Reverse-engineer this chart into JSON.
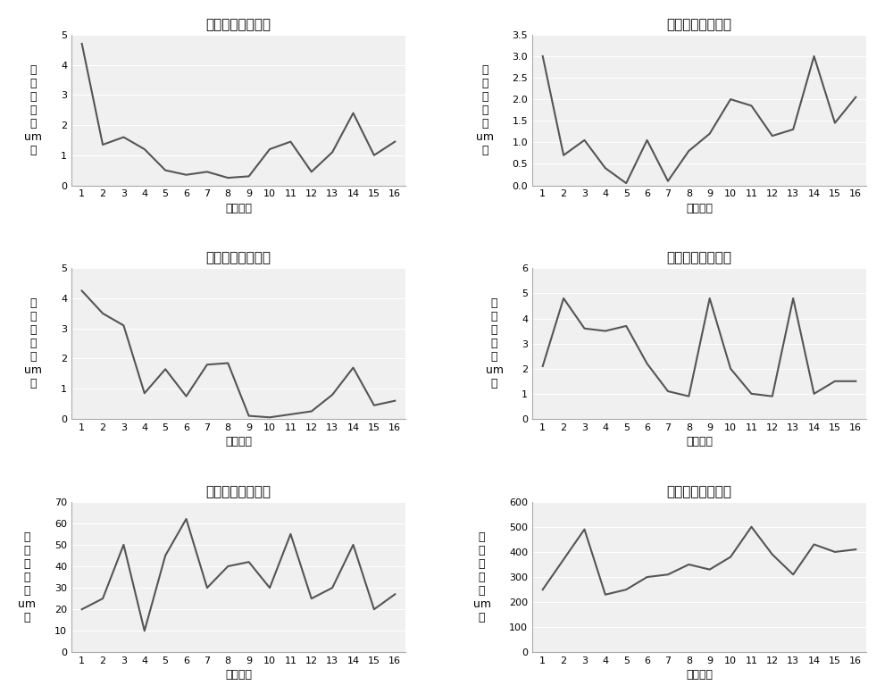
{
  "plots": [
    {
      "title": "一阶拟合绝对误差",
      "ylabel": "绝\n对\n误\n差\n（\num\n）",
      "xlabel": "元件编号",
      "ylim": [
        0,
        5
      ],
      "yticks": [
        0,
        1,
        2,
        3,
        4,
        5
      ],
      "data": [
        4.7,
        1.35,
        1.6,
        1.2,
        0.5,
        0.35,
        0.45,
        0.25,
        0.3,
        1.2,
        1.45,
        0.45,
        1.1,
        2.4,
        1.0,
        1.45
      ]
    },
    {
      "title": "二阶拟合绝对误差",
      "ylabel": "绝\n对\n误\n差\n（\num\n）",
      "xlabel": "元件编号",
      "ylim": [
        0,
        3.5
      ],
      "yticks": [
        0,
        0.5,
        1.0,
        1.5,
        2.0,
        2.5,
        3.0,
        3.5
      ],
      "data": [
        3.0,
        0.7,
        1.05,
        0.4,
        0.05,
        1.05,
        0.1,
        0.8,
        1.2,
        2.0,
        1.85,
        1.15,
        1.3,
        3.0,
        1.45,
        2.05
      ]
    },
    {
      "title": "三阶拟合绝对误差",
      "ylabel": "绝\n对\n误\n差\n（\num\n）",
      "xlabel": "元件编号",
      "ylim": [
        0,
        5
      ],
      "yticks": [
        0,
        1,
        2,
        3,
        4,
        5
      ],
      "data": [
        4.25,
        3.5,
        3.1,
        0.85,
        1.65,
        0.75,
        1.8,
        1.85,
        0.1,
        0.05,
        0.15,
        0.25,
        0.8,
        1.7,
        0.45,
        0.6
      ]
    },
    {
      "title": "四阶拟合绝对误差",
      "ylabel": "绝\n对\n误\n差\n（\num\n）",
      "xlabel": "元件编号",
      "ylim": [
        0,
        6
      ],
      "yticks": [
        0,
        1,
        2,
        3,
        4,
        5,
        6
      ],
      "data": [
        2.1,
        4.8,
        3.6,
        3.5,
        3.7,
        2.2,
        1.1,
        0.9,
        4.8,
        2.0,
        1.0,
        0.9,
        4.8,
        1.0,
        1.5,
        1.5
      ]
    },
    {
      "title": "五阶拟合绝对误差",
      "ylabel": "绝\n对\n误\n差\n（\num\n）",
      "xlabel": "元件编号",
      "ylim": [
        0,
        70
      ],
      "yticks": [
        0,
        10,
        20,
        30,
        40,
        50,
        60,
        70
      ],
      "data": [
        20,
        25,
        50,
        10,
        45,
        62,
        30,
        40,
        42,
        30,
        55,
        25,
        30,
        50,
        20,
        27
      ]
    },
    {
      "title": "六阶拟合绝对误差",
      "ylabel": "绝\n对\n误\n差\n（\num\n）",
      "xlabel": "元件编号",
      "ylim": [
        0,
        600
      ],
      "yticks": [
        0,
        100,
        200,
        300,
        400,
        500,
        600
      ],
      "data": [
        250,
        370,
        490,
        230,
        250,
        300,
        310,
        350,
        330,
        380,
        500,
        390,
        310,
        430,
        400,
        410
      ]
    }
  ],
  "line_color": "#555555",
  "line_width": 1.5,
  "bg_color": "#f0f0f0",
  "title_fontsize": 11,
  "label_fontsize": 9,
  "tick_fontsize": 8
}
